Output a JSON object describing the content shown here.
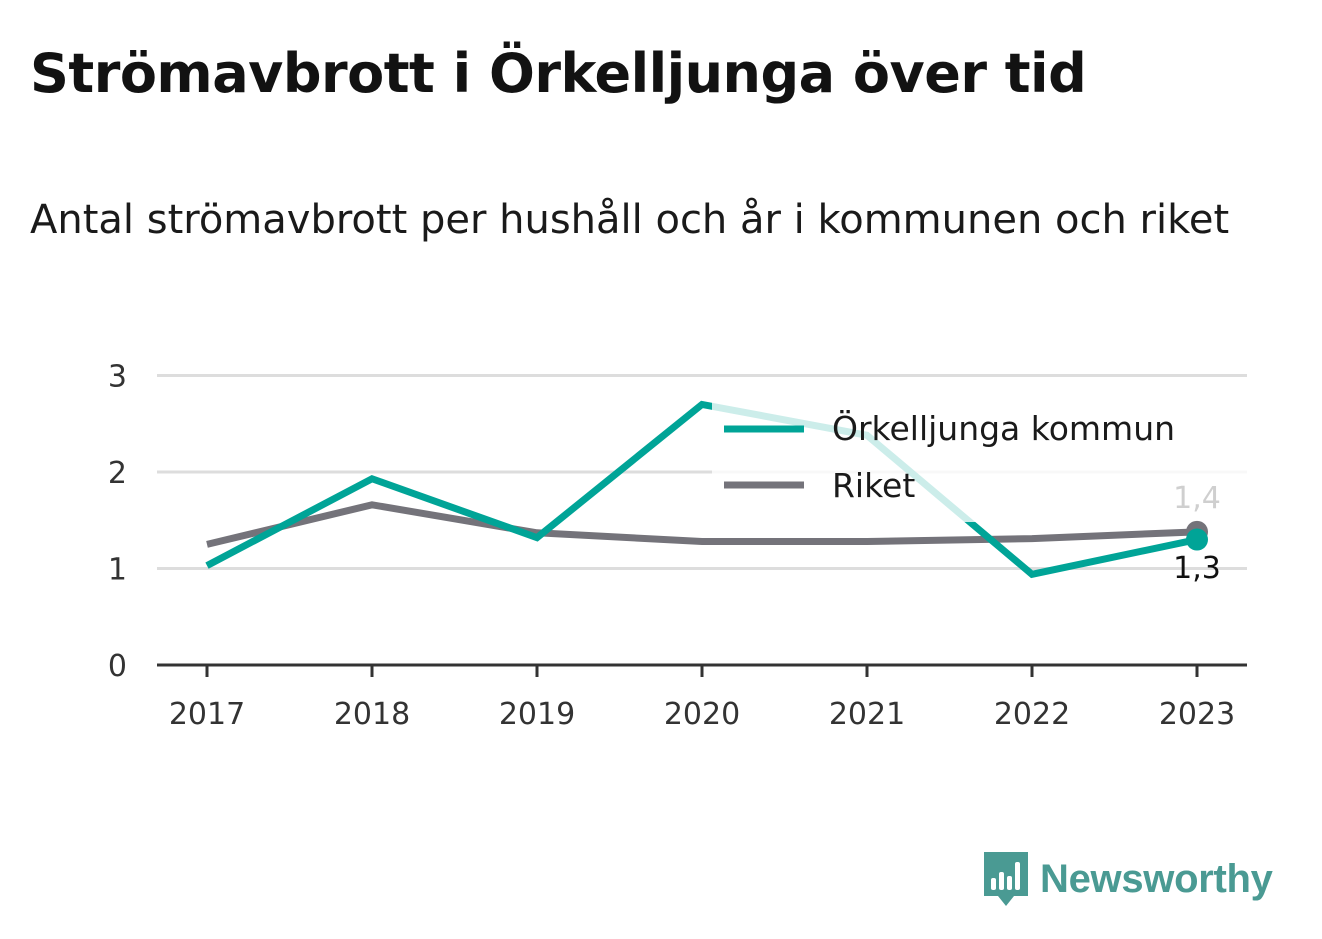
{
  "title": "Strömavbrott i Örkelljunga över tid",
  "subtitle": "Antal strömavbrott per hushåll och år i kommunen och riket",
  "brand": {
    "name": "Newsworthy",
    "icon": "chart-bubble-icon",
    "color": "#4a9a93"
  },
  "chart_data": {
    "type": "line",
    "categories": [
      "2017",
      "2018",
      "2019",
      "2020",
      "2021",
      "2022",
      "2023"
    ],
    "series": [
      {
        "name": "Örkelljunga kommun",
        "color": "#00a497",
        "values": [
          1.03,
          1.93,
          1.32,
          2.7,
          2.38,
          0.94,
          1.3
        ]
      },
      {
        "name": "Riket",
        "color": "#74737a",
        "values": [
          1.25,
          1.66,
          1.37,
          1.28,
          1.28,
          1.31,
          1.38
        ]
      }
    ],
    "yticks": [
      0,
      1,
      2,
      3
    ],
    "ylim": [
      0,
      3
    ],
    "grid": true,
    "legend": "top-right",
    "end_labels": [
      "1,3",
      "1,4"
    ]
  }
}
